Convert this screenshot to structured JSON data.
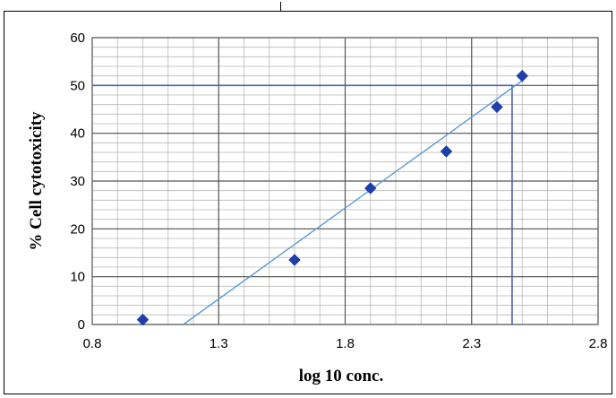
{
  "chart_data": {
    "type": "scatter",
    "title": "",
    "xlabel": "log 10 conc.",
    "ylabel": "% Cell cytotoxicity",
    "xlim": [
      0.8,
      2.8
    ],
    "ylim": [
      0,
      60
    ],
    "xticks": [
      "0.8",
      "1.3",
      "1.8",
      "2.3",
      "2.8"
    ],
    "yticks": [
      "0",
      "10",
      "20",
      "30",
      "40",
      "50",
      "60"
    ],
    "grid": true,
    "legend": "none",
    "series": [
      {
        "points": [
          {
            "x": 1.0,
            "y": 1.0
          },
          {
            "x": 1.6,
            "y": 13.5
          },
          {
            "x": 1.9,
            "y": 28.5
          },
          {
            "x": 2.2,
            "y": 36.2
          },
          {
            "x": 2.4,
            "y": 45.5
          },
          {
            "x": 2.5,
            "y": 52.0
          }
        ],
        "color": "#1f3fa8"
      }
    ],
    "trendline": {
      "from": {
        "x": 1.16,
        "y": 0
      },
      "to": {
        "x": 2.5,
        "y": 51
      },
      "color": "#5b9bd5"
    },
    "reference_lines": {
      "y": 50,
      "x": 2.46,
      "color": "#4a5fb8"
    }
  }
}
